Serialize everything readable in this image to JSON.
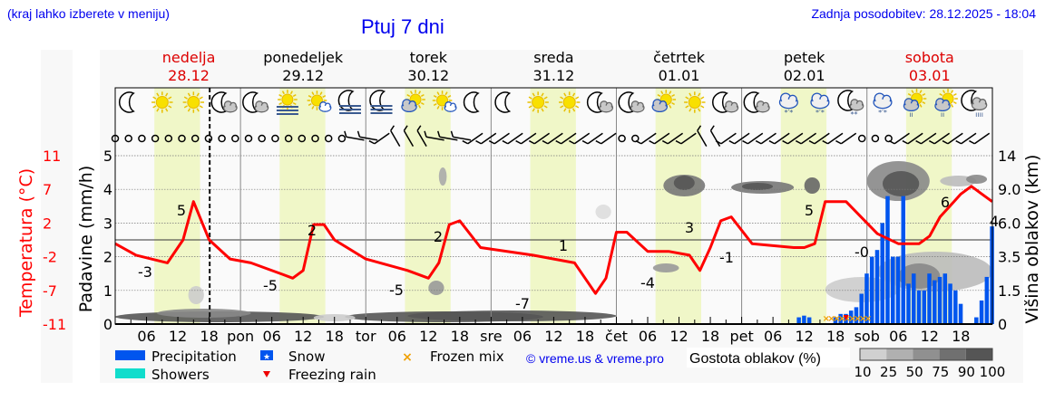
{
  "header": {
    "hint": "(kraj lahko izberete v meniju)",
    "title": "Ptuj 7 dni",
    "updated": "Zadnja posodobitev: 28.12.2025 - 18:04"
  },
  "colors": {
    "temperature": "#ff0000",
    "weekend": "#dd0000",
    "daylight": "#f0f7c8",
    "precipitation": "#0055ee",
    "showers": "#11ddcc",
    "frozen_mix": "#f0a000",
    "freezing_rain": "#ee0000",
    "link": "#0000ee"
  },
  "days": [
    {
      "name": "nedelja",
      "date": "28.12",
      "weekend": true
    },
    {
      "name": "ponedeljek",
      "date": "29.12",
      "weekend": false
    },
    {
      "name": "torek",
      "date": "30.12",
      "weekend": false
    },
    {
      "name": "sreda",
      "date": "31.12",
      "weekend": false
    },
    {
      "name": "četrtek",
      "date": "01.01",
      "weekend": false
    },
    {
      "name": "petek",
      "date": "02.01",
      "weekend": false
    },
    {
      "name": "sobota",
      "date": "03.01",
      "weekend": true
    }
  ],
  "icons": [
    "moon",
    "sun",
    "sun",
    "moon-cloud",
    "moon-cloud",
    "sun-fog",
    "sun-cloud",
    "moon-fog",
    "moon-fog",
    "cloud-sun",
    "sun-cloud",
    "moon",
    "moon",
    "sun",
    "sun",
    "moon-cloud",
    "moon-cloud",
    "cloud-sun",
    "sun",
    "moon-cloud",
    "moon-cloud",
    "cloud-snow",
    "cloud-snow",
    "moon-cloud-snow",
    "cloud-snow",
    "sun-cloud-rain",
    "sun-cloud-rain",
    "moon-cloud-rain"
  ],
  "wind": [
    "calm",
    "calm",
    "calm",
    "calm",
    "calm",
    "calm",
    "calm",
    "calm",
    "calm",
    "calm",
    "calm",
    "calm",
    "calm",
    "calm",
    "calm",
    "calm",
    "calm",
    "calm",
    "barb-w",
    "barb-w",
    "barb-n",
    "barb-nw",
    "barb-nw",
    "barb-nw",
    "barb-w",
    "barb-w",
    "barb-w",
    "barb-sw",
    "barb-sw",
    "barb-sw",
    "barb-sw",
    "barb-sw",
    "barb-sw",
    "barb-sw",
    "barb-sw",
    "barb-sw",
    "barb-sw",
    "barb-sw",
    "calm",
    "calm",
    "barb-sw",
    "barb-sw",
    "barb-sw",
    "barb-sw",
    "barb-nw",
    "barb-nw",
    "barb-sw",
    "barb-sw",
    "barb-sw",
    "barb-sw",
    "barb-sw",
    "barb-sw",
    "barb-sw",
    "barb-sw",
    "barb-sw",
    "barb-sw",
    "calm",
    "calm",
    "calm",
    "barb-n",
    "barb-sw",
    "barb-sw",
    "barb-sw",
    "barb-sw",
    "barb-sw",
    "barb-sw"
  ],
  "legend": {
    "precipitation": "Precipitation",
    "showers": "Showers",
    "snow": "Snow",
    "freezing_rain": "Freezing rain",
    "frozen_mix": "Frozen mix",
    "copyright": "© vreme.us & vreme.pro",
    "cloud_density_title": "Gostota oblakov (%)",
    "cloud_density_levels": [
      "10",
      "25",
      "50",
      "75",
      "90",
      "100"
    ]
  },
  "chart_data": {
    "type": "line",
    "title": "Ptuj 7 dni",
    "xlabel": "",
    "ylabel_left_outer": "Temperatura (°C)",
    "ylabel_left_inner": "Padavine (mm/h)",
    "ylabel_right": "Višina oblakov (km)",
    "x_tick_labels": [
      "06",
      "12",
      "18",
      "pon",
      "06",
      "12",
      "18",
      "tor",
      "06",
      "12",
      "18",
      "sre",
      "06",
      "12",
      "18",
      "čet",
      "06",
      "12",
      "18",
      "pet",
      "06",
      "12",
      "18",
      "sob",
      "06",
      "12",
      "18"
    ],
    "temperature_ticks": [
      "11",
      "7",
      "2",
      "-2",
      "-7",
      "-11"
    ],
    "precip_ticks": [
      "5",
      "4",
      "3",
      "2",
      "1",
      "0"
    ],
    "precip_ylim": [
      0,
      5
    ],
    "cloud_height_ticks": [
      "14",
      "9.0",
      "6.0",
      "3.5",
      "1.5",
      "0"
    ],
    "now_marker_hour": 18.1,
    "grid": true,
    "series": [
      {
        "name": "Temperatura (°C)",
        "hours": [
          0,
          4,
          10,
          13,
          15,
          18,
          22,
          26,
          32,
          34,
          36,
          38,
          40,
          42,
          48,
          56,
          60,
          62,
          64,
          66,
          70,
          80,
          88,
          92,
          94,
          96,
          98,
          102,
          106,
          110,
          112,
          114,
          116,
          118,
          122,
          130,
          132,
          134,
          136,
          140,
          146,
          150,
          152,
          154,
          156,
          158,
          160,
          162,
          164,
          166,
          168
        ],
        "values": [
          -0.5,
          -2,
          -3,
          0,
          5,
          0,
          -2.5,
          -3,
          -4.5,
          -5,
          -4,
          2,
          2,
          0,
          -2.5,
          -4,
          -5,
          -3,
          2,
          2.5,
          -1,
          -2,
          -3,
          -7,
          -5,
          1,
          1,
          -1.5,
          -1.5,
          -2,
          -4,
          -1,
          2.5,
          3,
          -0.5,
          -1,
          -1,
          -0.5,
          5,
          5,
          0.8,
          -0.5,
          -0.5,
          -0.5,
          0.5,
          3,
          4.5,
          6,
          7,
          6,
          5
        ],
        "min_max_labels": [
          {
            "hour": 10,
            "label": "-3"
          },
          {
            "hour": 13,
            "label": "5"
          },
          {
            "hour": 30,
            "label": "-5"
          },
          {
            "hour": 38,
            "label": "2"
          },
          {
            "hour": 54,
            "label": "-5"
          },
          {
            "hour": 62,
            "label": "2"
          },
          {
            "hour": 78,
            "label": "-7"
          },
          {
            "hour": 86,
            "label": "1"
          },
          {
            "hour": 102,
            "label": "-4"
          },
          {
            "hour": 110,
            "label": "3"
          },
          {
            "hour": 118,
            "label": "-1"
          },
          {
            "hour": 132,
            "label": "5"
          },
          {
            "hour": 143,
            "label": "-0"
          },
          {
            "hour": 158,
            "label": "6"
          },
          {
            "hour": 168,
            "label": "4"
          }
        ]
      },
      {
        "name": "Precipitation (mm/h)",
        "hours": [
          131,
          132,
          133,
          138,
          139,
          140,
          141,
          142,
          143,
          144,
          145,
          146,
          147,
          148,
          149,
          150,
          151,
          152,
          153,
          154,
          155,
          156,
          157,
          158,
          159,
          160,
          161,
          162,
          165,
          166,
          167,
          168
        ],
        "values": [
          0.2,
          0.25,
          0.2,
          0.2,
          0.3,
          0.3,
          0.4,
          0.5,
          0.9,
          1.5,
          2,
          2.2,
          3,
          3.8,
          2,
          2,
          3.8,
          1.2,
          1.5,
          1,
          1,
          1.5,
          1.3,
          1.4,
          1.5,
          1.2,
          1,
          0.6,
          0.2,
          0.7,
          1.4,
          2.9
        ]
      }
    ]
  }
}
